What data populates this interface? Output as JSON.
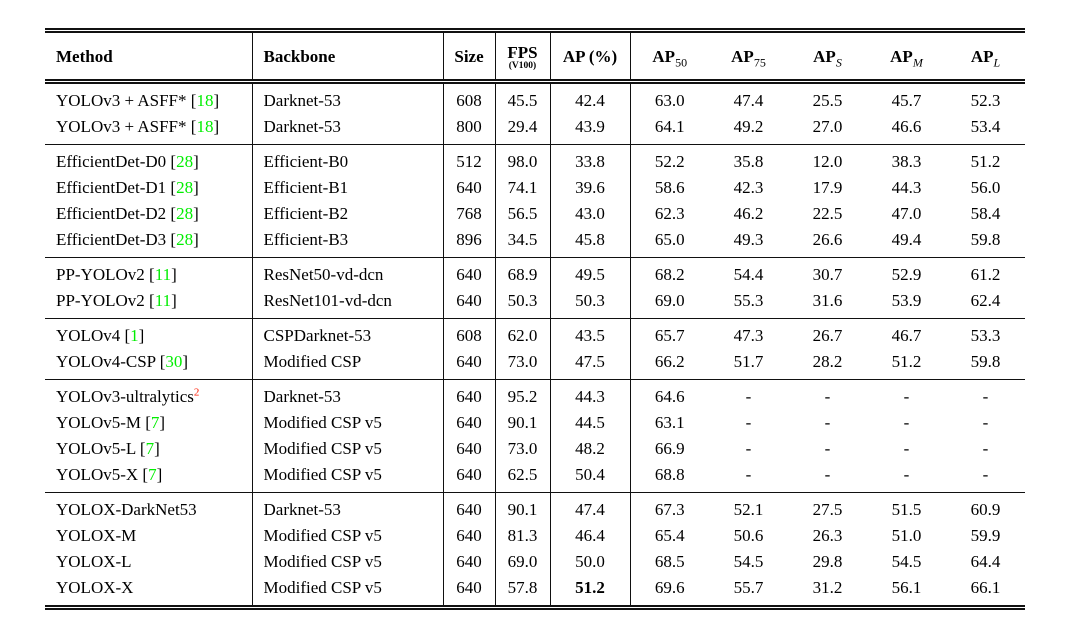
{
  "table": {
    "citation_color": "#00ee00",
    "footnote_color": "#ff1a00",
    "columns": [
      {
        "key": "method",
        "label": "Method"
      },
      {
        "key": "backbone",
        "label": "Backbone"
      },
      {
        "key": "size",
        "label": "Size"
      },
      {
        "key": "fps",
        "label": "FPS",
        "sub": "(V100)"
      },
      {
        "key": "ap",
        "label": "AP (%)"
      },
      {
        "key": "ap50",
        "label": "AP",
        "sub": "50"
      },
      {
        "key": "ap75",
        "label": "AP",
        "sub": "75"
      },
      {
        "key": "aps",
        "label": "AP",
        "sub": "S"
      },
      {
        "key": "apm",
        "label": "AP",
        "sub": "M"
      },
      {
        "key": "apl",
        "label": "AP",
        "sub": "L"
      }
    ],
    "groups": [
      {
        "rows": [
          {
            "method": {
              "label": "YOLOv3 + ASFF*",
              "cite": "18"
            },
            "backbone": "Darknet-53",
            "size": "608",
            "fps": "45.5",
            "ap": "42.4",
            "ap50": "63.0",
            "ap75": "47.4",
            "aps": "25.5",
            "apm": "45.7",
            "apl": "52.3"
          },
          {
            "method": {
              "label": "YOLOv3 + ASFF*",
              "cite": "18"
            },
            "backbone": "Darknet-53",
            "size": "800",
            "fps": "29.4",
            "ap": "43.9",
            "ap50": "64.1",
            "ap75": "49.2",
            "aps": "27.0",
            "apm": "46.6",
            "apl": "53.4"
          }
        ]
      },
      {
        "rows": [
          {
            "method": {
              "label": "EfficientDet-D0",
              "cite": "28"
            },
            "backbone": "Efficient-B0",
            "size": "512",
            "fps": "98.0",
            "ap": "33.8",
            "ap50": "52.2",
            "ap75": "35.8",
            "aps": "12.0",
            "apm": "38.3",
            "apl": "51.2"
          },
          {
            "method": {
              "label": "EfficientDet-D1",
              "cite": "28"
            },
            "backbone": "Efficient-B1",
            "size": "640",
            "fps": "74.1",
            "ap": "39.6",
            "ap50": "58.6",
            "ap75": "42.3",
            "aps": "17.9",
            "apm": "44.3",
            "apl": "56.0"
          },
          {
            "method": {
              "label": "EfficientDet-D2",
              "cite": "28"
            },
            "backbone": "Efficient-B2",
            "size": "768",
            "fps": "56.5",
            "ap": "43.0",
            "ap50": "62.3",
            "ap75": "46.2",
            "aps": "22.5",
            "apm": "47.0",
            "apl": "58.4"
          },
          {
            "method": {
              "label": "EfficientDet-D3",
              "cite": "28"
            },
            "backbone": "Efficient-B3",
            "size": "896",
            "fps": "34.5",
            "ap": "45.8",
            "ap50": "65.0",
            "ap75": "49.3",
            "aps": "26.6",
            "apm": "49.4",
            "apl": "59.8"
          }
        ]
      },
      {
        "rows": [
          {
            "method": {
              "label": "PP-YOLOv2",
              "cite": "11"
            },
            "backbone": "ResNet50-vd-dcn",
            "size": "640",
            "fps": "68.9",
            "ap": "49.5",
            "ap50": "68.2",
            "ap75": "54.4",
            "aps": "30.7",
            "apm": "52.9",
            "apl": "61.2"
          },
          {
            "method": {
              "label": "PP-YOLOv2",
              "cite": "11"
            },
            "backbone": "ResNet101-vd-dcn",
            "size": "640",
            "fps": "50.3",
            "ap": "50.3",
            "ap50": "69.0",
            "ap75": "55.3",
            "aps": "31.6",
            "apm": "53.9",
            "apl": "62.4"
          }
        ]
      },
      {
        "rows": [
          {
            "method": {
              "label": "YOLOv4",
              "cite": "1"
            },
            "backbone": "CSPDarknet-53",
            "size": "608",
            "fps": "62.0",
            "ap": "43.5",
            "ap50": "65.7",
            "ap75": "47.3",
            "aps": "26.7",
            "apm": "46.7",
            "apl": "53.3"
          },
          {
            "method": {
              "label": "YOLOv4-CSP",
              "cite": "30"
            },
            "backbone": "Modified CSP",
            "size": "640",
            "fps": "73.0",
            "ap": "47.5",
            "ap50": "66.2",
            "ap75": "51.7",
            "aps": "28.2",
            "apm": "51.2",
            "apl": "59.8"
          }
        ]
      },
      {
        "rows": [
          {
            "method": {
              "label": "YOLOv3-ultralytics",
              "sup": "2"
            },
            "backbone": "Darknet-53",
            "size": "640",
            "fps": "95.2",
            "ap": "44.3",
            "ap50": "64.6",
            "ap75": "-",
            "aps": "-",
            "apm": "-",
            "apl": "-"
          },
          {
            "method": {
              "label": "YOLOv5-M",
              "cite": "7"
            },
            "backbone": "Modified CSP v5",
            "size": "640",
            "fps": "90.1",
            "ap": "44.5",
            "ap50": "63.1",
            "ap75": "-",
            "aps": "-",
            "apm": "-",
            "apl": "-"
          },
          {
            "method": {
              "label": "YOLOv5-L",
              "cite": "7"
            },
            "backbone": "Modified CSP v5",
            "size": "640",
            "fps": "73.0",
            "ap": "48.2",
            "ap50": "66.9",
            "ap75": "-",
            "aps": "-",
            "apm": "-",
            "apl": "-"
          },
          {
            "method": {
              "label": "YOLOv5-X",
              "cite": "7"
            },
            "backbone": "Modified CSP v5",
            "size": "640",
            "fps": "62.5",
            "ap": "50.4",
            "ap50": "68.8",
            "ap75": "-",
            "aps": "-",
            "apm": "-",
            "apl": "-"
          }
        ]
      },
      {
        "rows": [
          {
            "method": {
              "label": "YOLOX-DarkNet53"
            },
            "backbone": "Darknet-53",
            "size": "640",
            "fps": "90.1",
            "ap": "47.4",
            "ap50": "67.3",
            "ap75": "52.1",
            "aps": "27.5",
            "apm": "51.5",
            "apl": "60.9"
          },
          {
            "method": {
              "label": "YOLOX-M"
            },
            "backbone": "Modified CSP v5",
            "size": "640",
            "fps": "81.3",
            "ap": "46.4",
            "ap50": "65.4",
            "ap75": "50.6",
            "aps": "26.3",
            "apm": "51.0",
            "apl": "59.9"
          },
          {
            "method": {
              "label": "YOLOX-L"
            },
            "backbone": "Modified CSP v5",
            "size": "640",
            "fps": "69.0",
            "ap": "50.0",
            "ap50": "68.5",
            "ap75": "54.5",
            "aps": "29.8",
            "apm": "54.5",
            "apl": "64.4"
          },
          {
            "method": {
              "label": "YOLOX-X"
            },
            "backbone": "Modified CSP v5",
            "size": "640",
            "fps": "57.8",
            "ap": "51.2",
            "ap50": "69.6",
            "ap75": "55.7",
            "aps": "31.2",
            "apm": "56.1",
            "apl": "66.1",
            "bold": [
              "ap"
            ]
          }
        ]
      }
    ]
  }
}
